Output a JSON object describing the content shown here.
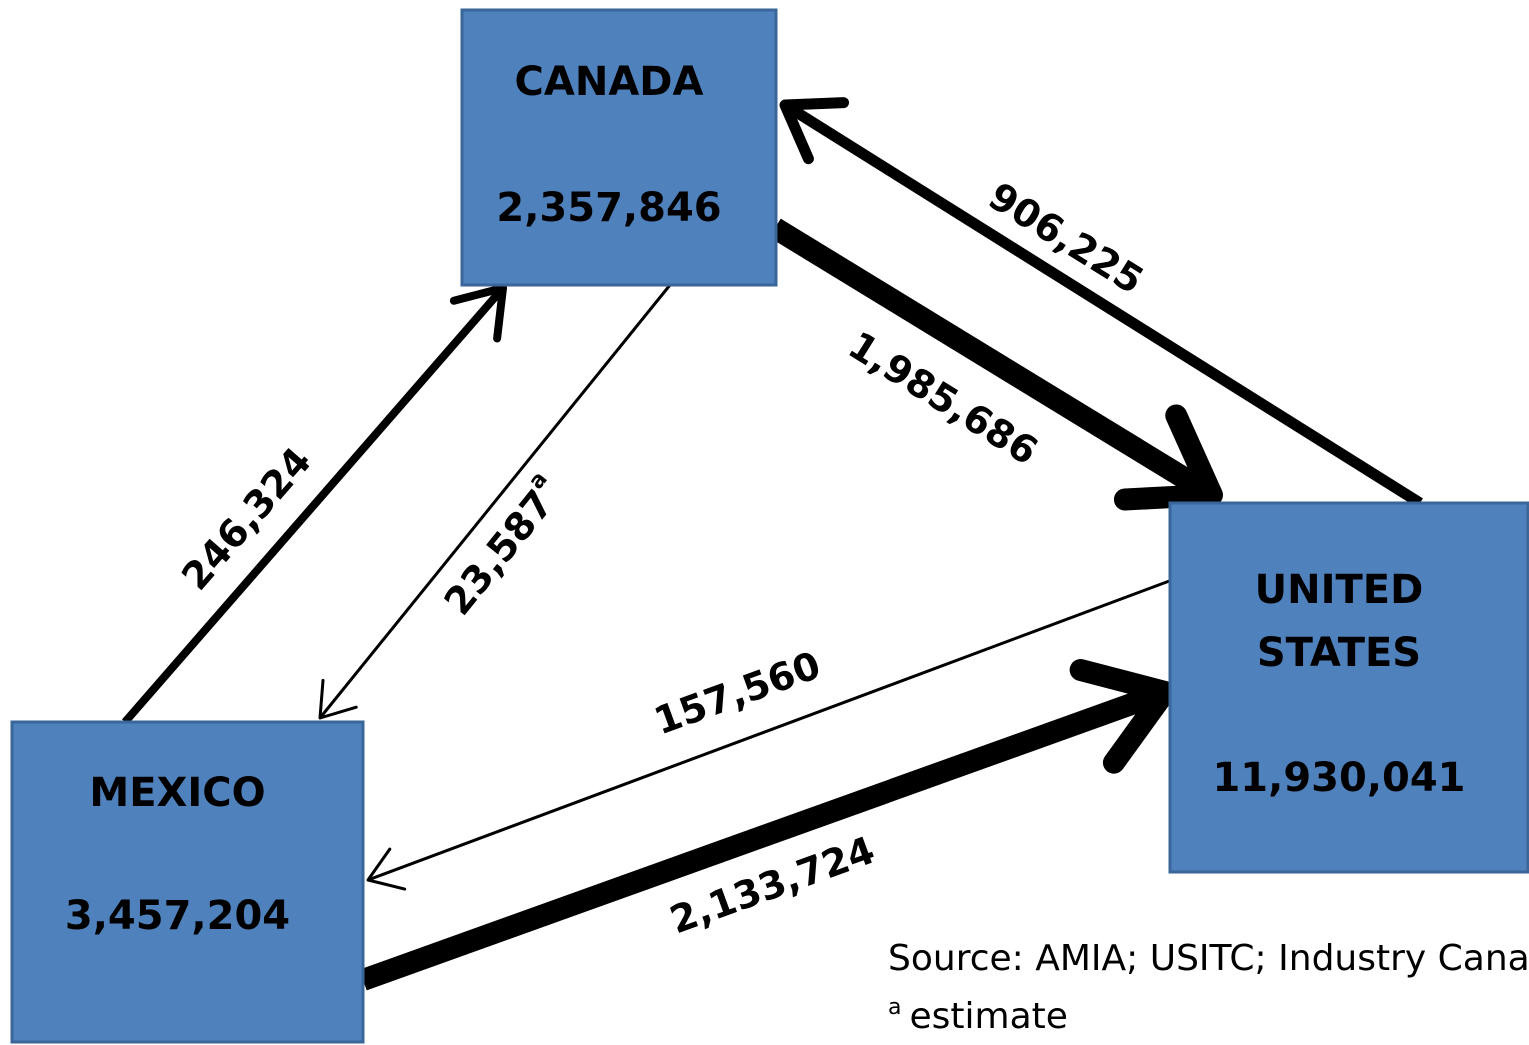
{
  "nodes": [
    {
      "label": "CANADA",
      "value": "2,357,846"
    },
    {
      "label": "UNITED STATES",
      "value": "11,930,041"
    },
    {
      "label": "MEXICO",
      "value": "3,457,204"
    }
  ],
  "edges": [
    {
      "from": "UNITED STATES",
      "to": "CANADA",
      "label": "906,225"
    },
    {
      "from": "CANADA",
      "to": "UNITED STATES",
      "label": "1,985,686"
    },
    {
      "from": "MEXICO",
      "to": "CANADA",
      "label": "246,324"
    },
    {
      "from": "CANADA",
      "to": "MEXICO",
      "label": "23,587",
      "note": "a"
    },
    {
      "from": "UNITED STATES",
      "to": "MEXICO",
      "label": "157,560"
    },
    {
      "from": "MEXICO",
      "to": "UNITED STATES",
      "label": "2,133,724"
    }
  ],
  "footer": {
    "source": "Source: AMIA; USITC; Industry Canada",
    "note_mark": "a",
    "note": "estimate"
  }
}
